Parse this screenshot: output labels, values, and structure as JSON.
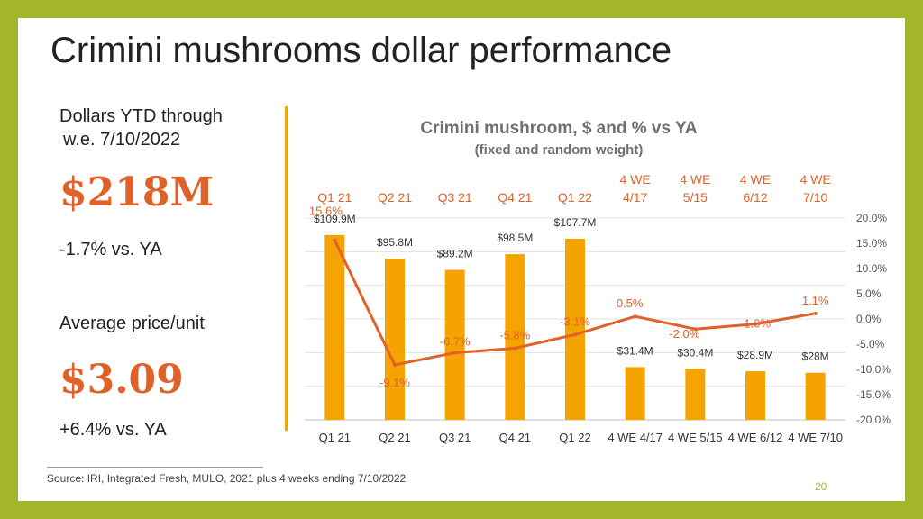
{
  "slide": {
    "title": "Crimini mushrooms dollar performance",
    "ytd_label_line1": "Dollars YTD through",
    "ytd_label_line2": "w.e. 7/10/2022",
    "ytd_value": "$218M",
    "ytd_change": "-1.7% vs. YA",
    "avg_price_label": "Average price/unit",
    "avg_price_value": "$3.09",
    "avg_price_change": "+6.4% vs. YA",
    "source": "Source: IRI, Integrated Fresh, MULO, 2021 plus 4 weeks ending 7/10/2022",
    "page_number": "20"
  },
  "colors": {
    "frame": "#a3b52a",
    "accent": "#e0622b",
    "bar": "#f5a300",
    "line": "#e0622b"
  },
  "chart_data": {
    "type": "bar",
    "title": "Crimini mushroom, $ and % vs YA",
    "subtitle": "(fixed and random weight)",
    "categories": [
      "Q1 21",
      "Q2 21",
      "Q3 21",
      "Q4 21",
      "Q1 22",
      "4 WE 4/17",
      "4 WE 5/15",
      "4 WE 6/12",
      "4 WE 7/10"
    ],
    "top_labels": [
      [
        "Q1 21"
      ],
      [
        "Q2 21"
      ],
      [
        "Q3 21"
      ],
      [
        "Q4 21"
      ],
      [
        "Q1 22"
      ],
      [
        "4 WE",
        "4/17"
      ],
      [
        "4 WE",
        "5/15"
      ],
      [
        "4 WE",
        "6/12"
      ],
      [
        "4 WE",
        "7/10"
      ]
    ],
    "series": [
      {
        "type": "bar",
        "axis": "left",
        "values": [
          109.9,
          95.8,
          89.2,
          98.5,
          107.7,
          31.4,
          30.4,
          28.9,
          28.0
        ],
        "labels": [
          "$109.9M",
          "$95.8M",
          "$89.2M",
          "$98.5M",
          "$107.7M",
          "$31.4M",
          "$30.4M",
          "$28.9M",
          "$28M"
        ]
      },
      {
        "type": "line",
        "axis": "right",
        "values": [
          15.6,
          -9.1,
          -6.7,
          -5.8,
          -3.1,
          0.5,
          -2.0,
          -1.0,
          1.1
        ],
        "labels": [
          "15.6%",
          "-9.1%",
          "-6.7%",
          "-5.8%",
          "-3.1%",
          "0.5%",
          "-2.0%",
          "-1.0%",
          "1.1%"
        ]
      }
    ],
    "y_left_lim": [
      0,
      120
    ],
    "y_right_lim": [
      -20,
      20
    ],
    "y_right_ticks": [
      "20.0%",
      "15.0%",
      "10.0%",
      "5.0%",
      "0.0%",
      "-5.0%",
      "-10.0%",
      "-15.0%",
      "-20.0%"
    ],
    "grid": true,
    "legend": "none"
  }
}
